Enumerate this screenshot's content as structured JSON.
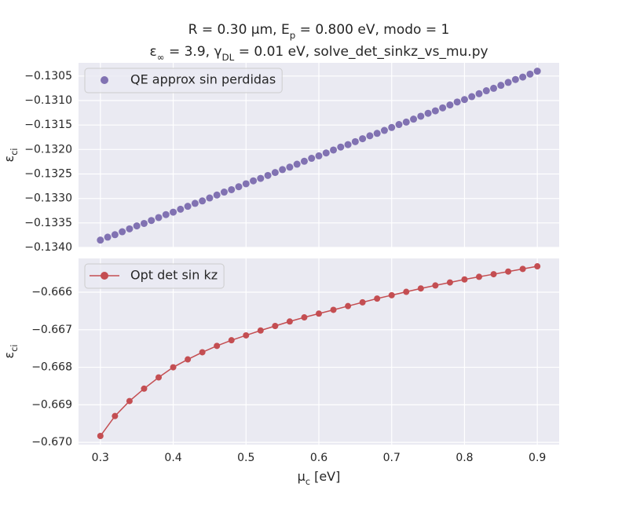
{
  "chart_data": [
    {
      "type": "scatter",
      "title_lines": [
        [
          {
            "text": "R = 0.30 μm, E"
          },
          {
            "text": "p",
            "sub": true
          },
          {
            "text": " = 0.800 eV, modo = 1"
          }
        ],
        [
          {
            "text": "ε"
          },
          {
            "text": "∞",
            "sub": true
          },
          {
            "text": " = 3.9, γ"
          },
          {
            "text": "DL",
            "sub": true
          },
          {
            "text": " = 0.01 eV, solve_det_sinkz_vs_mu.py"
          }
        ]
      ],
      "ylabel": [
        {
          "text": "ε"
        },
        {
          "text": "ci",
          "sub": true
        }
      ],
      "xlim": [
        0.27,
        0.93
      ],
      "ylim": [
        -0.134,
        -0.13023
      ],
      "xticks": [
        0.3,
        0.4,
        0.5,
        0.6,
        0.7,
        0.8,
        0.9
      ],
      "yticks": [
        {
          "value": -0.1305,
          "label": "−0.1305"
        },
        {
          "value": -0.131,
          "label": "−0.1310"
        },
        {
          "value": -0.1315,
          "label": "−0.1315"
        },
        {
          "value": -0.132,
          "label": "−0.1320"
        },
        {
          "value": -0.1325,
          "label": "−0.1325"
        },
        {
          "value": -0.133,
          "label": "−0.1330"
        },
        {
          "value": -0.1335,
          "label": "−0.1335"
        },
        {
          "value": -0.134,
          "label": "−0.1340"
        }
      ],
      "grid": true,
      "legend": "upper left",
      "series": [
        {
          "name": "QE approx sin perdidas",
          "color": "#8172b2",
          "x": [
            0.3,
            0.31,
            0.32,
            0.33,
            0.34,
            0.35,
            0.36,
            0.37,
            0.38,
            0.39,
            0.4,
            0.41,
            0.42,
            0.43,
            0.44,
            0.45,
            0.46,
            0.47,
            0.48,
            0.49,
            0.5,
            0.51,
            0.52,
            0.53,
            0.54,
            0.55,
            0.56,
            0.57,
            0.58,
            0.59,
            0.6,
            0.61,
            0.62,
            0.63,
            0.64,
            0.65,
            0.66,
            0.67,
            0.68,
            0.69,
            0.7,
            0.71,
            0.72,
            0.73,
            0.74,
            0.75,
            0.76,
            0.77,
            0.78,
            0.79,
            0.8,
            0.81,
            0.82,
            0.83,
            0.84,
            0.85,
            0.86,
            0.87,
            0.88,
            0.89,
            0.9
          ],
          "values": [
            -0.13385,
            -0.13379,
            -0.13374,
            -0.13368,
            -0.13362,
            -0.13356,
            -0.13351,
            -0.13345,
            -0.13339,
            -0.13333,
            -0.13328,
            -0.13322,
            -0.13316,
            -0.1331,
            -0.13305,
            -0.13299,
            -0.13293,
            -0.13287,
            -0.13282,
            -0.13276,
            -0.1327,
            -0.13264,
            -0.13259,
            -0.13253,
            -0.13247,
            -0.13241,
            -0.13236,
            -0.1323,
            -0.13224,
            -0.13218,
            -0.13213,
            -0.13207,
            -0.13201,
            -0.13195,
            -0.1319,
            -0.13184,
            -0.13178,
            -0.13172,
            -0.13167,
            -0.13161,
            -0.13155,
            -0.13149,
            -0.13144,
            -0.13138,
            -0.13132,
            -0.13126,
            -0.13121,
            -0.13115,
            -0.13109,
            -0.13103,
            -0.13098,
            -0.13092,
            -0.13086,
            -0.1308,
            -0.13075,
            -0.13069,
            -0.13063,
            -0.13057,
            -0.13052,
            -0.13046,
            -0.1304
          ]
        }
      ]
    },
    {
      "type": "line",
      "xlabel": [
        {
          "text": "μ"
        },
        {
          "text": "c",
          "sub": true
        },
        {
          "text": " [eV]"
        }
      ],
      "ylabel": [
        {
          "text": "ε"
        },
        {
          "text": "ci",
          "sub": true
        }
      ],
      "xlim": [
        0.27,
        0.93
      ],
      "ylim": [
        -0.67006,
        -0.6651
      ],
      "xticks": [
        0.3,
        0.4,
        0.5,
        0.6,
        0.7,
        0.8,
        0.9
      ],
      "yticks": [
        {
          "value": -0.666,
          "label": "−0.666"
        },
        {
          "value": -0.667,
          "label": "−0.667"
        },
        {
          "value": -0.668,
          "label": "−0.668"
        },
        {
          "value": -0.669,
          "label": "−0.669"
        },
        {
          "value": -0.67,
          "label": "−0.670"
        }
      ],
      "grid": true,
      "legend": "upper left",
      "series": [
        {
          "name": "Opt det sin kz",
          "color": "#c44e52",
          "x": [
            0.3,
            0.32,
            0.34,
            0.36,
            0.38,
            0.4,
            0.42,
            0.44,
            0.46,
            0.48,
            0.5,
            0.52,
            0.54,
            0.56,
            0.58,
            0.6,
            0.62,
            0.64,
            0.66,
            0.68,
            0.7,
            0.72,
            0.74,
            0.76,
            0.78,
            0.8,
            0.82,
            0.84,
            0.86,
            0.88,
            0.9
          ],
          "values": [
            -0.66983,
            -0.6693,
            -0.6689,
            -0.66857,
            -0.66827,
            -0.668,
            -0.66779,
            -0.6676,
            -0.66743,
            -0.66728,
            -0.66715,
            -0.66702,
            -0.6669,
            -0.66678,
            -0.66667,
            -0.66657,
            -0.66647,
            -0.66637,
            -0.66627,
            -0.66617,
            -0.66608,
            -0.66599,
            -0.6659,
            -0.66582,
            -0.66574,
            -0.66566,
            -0.66559,
            -0.66552,
            -0.66545,
            -0.66538,
            -0.66531
          ]
        }
      ]
    }
  ]
}
